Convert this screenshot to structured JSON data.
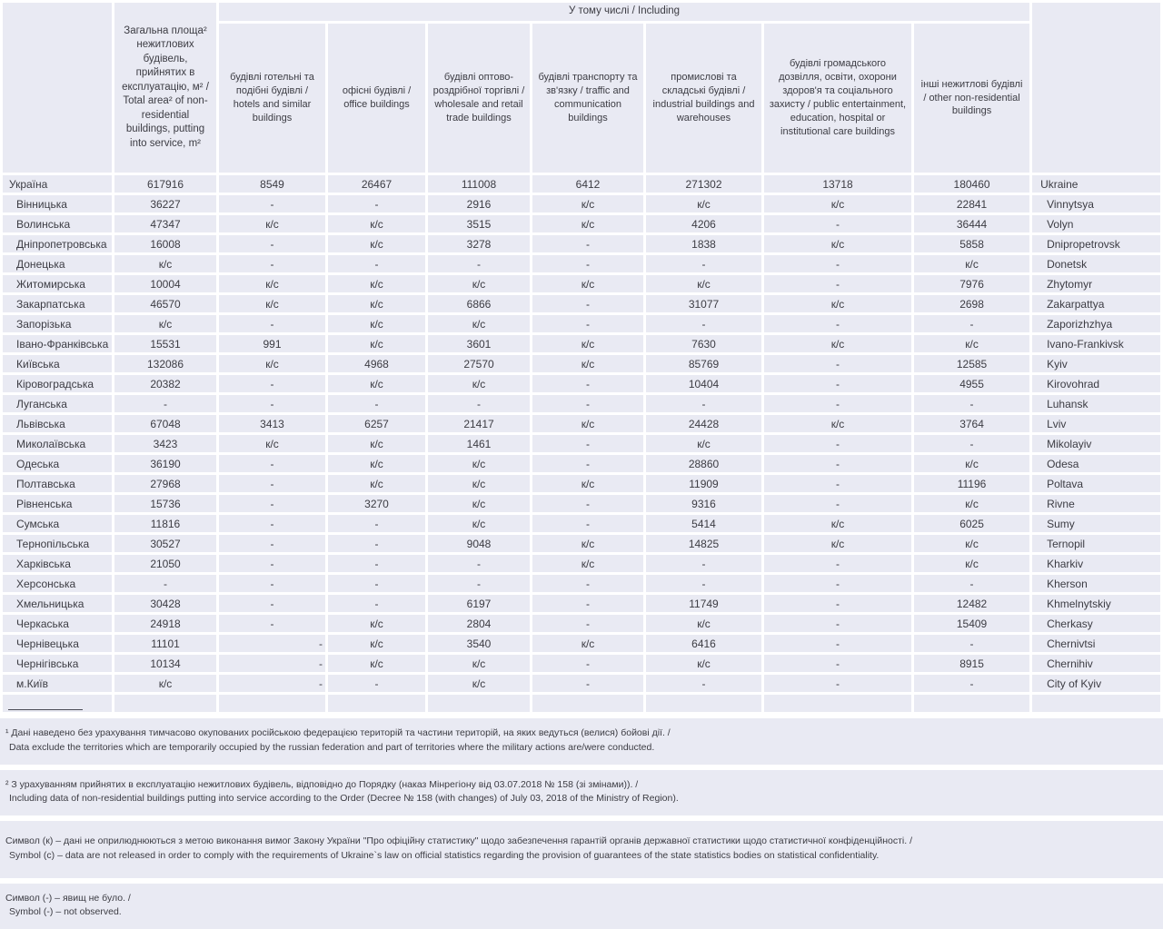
{
  "table": {
    "including_header": "У тому числі / Including",
    "col_headers": {
      "total": "Загальна площа² нежитлових будівель, прийнятих в експлуатацію, м² / Total area² of non-residential buildings, putting into service, m²",
      "hotels": "будівлі готельні та подібні будівлі / hotels and similar buildings",
      "office": "офісні будівлі / office buildings",
      "wholesale": "будівлі оптово-роздрібної торгівлі / wholesale and retail trade buildings",
      "traffic": "будівлі транспорту та зв'язку / traffic and communication buildings",
      "industrial": "промислові та складські будівлі / industrial buildings and warehouses",
      "public": "будівлі громадського дозвілля, освіти, охорони здоров'я та соціального захисту / public entertainment, education, hospital or institutional care buildings",
      "other": "інші нежитлові будівлі / other non-residential buildings"
    },
    "rows": [
      {
        "ua": "Україна",
        "en": "Ukraine",
        "indent": false,
        "values": [
          "617916",
          "8549",
          "26467",
          "111008",
          "6412",
          "271302",
          "13718",
          "180460"
        ]
      },
      {
        "ua": "Вінницька",
        "en": "Vinnytsya",
        "indent": true,
        "values": [
          "36227",
          "-",
          "-",
          "2916",
          "к/с",
          "к/с",
          "к/с",
          "22841"
        ]
      },
      {
        "ua": "Волинська",
        "en": "Volyn",
        "indent": true,
        "values": [
          "47347",
          "к/с",
          "к/с",
          "3515",
          "к/с",
          "4206",
          "-",
          "36444"
        ]
      },
      {
        "ua": "Дніпропетровська",
        "en": "Dnipropetrovsk",
        "indent": true,
        "values": [
          "16008",
          "-",
          "к/с",
          "3278",
          "-",
          "1838",
          "к/с",
          "5858"
        ]
      },
      {
        "ua": "Донецька",
        "en": "Donetsk",
        "indent": true,
        "values": [
          "к/с",
          "-",
          "-",
          "-",
          "-",
          "-",
          "-",
          "к/с"
        ]
      },
      {
        "ua": "Житомирська",
        "en": "Zhytomyr",
        "indent": true,
        "values": [
          "10004",
          "к/с",
          "к/с",
          "к/с",
          "к/с",
          "к/с",
          "-",
          "7976"
        ]
      },
      {
        "ua": "Закарпатська",
        "en": "Zakarpattya",
        "indent": true,
        "values": [
          "46570",
          "к/с",
          "к/с",
          "6866",
          "-",
          "31077",
          "к/с",
          "2698"
        ]
      },
      {
        "ua": "Запорізька",
        "en": "Zaporizhzhya",
        "indent": true,
        "values": [
          "к/с",
          "-",
          "к/с",
          "к/с",
          "-",
          "-",
          "-",
          "-"
        ]
      },
      {
        "ua": "Івано-Франківська",
        "en": "Ivano-Frankivsk",
        "indent": true,
        "values": [
          "15531",
          "991",
          "к/с",
          "3601",
          "к/с",
          "7630",
          "к/с",
          "к/с"
        ]
      },
      {
        "ua": "Київська",
        "en": "Kyiv",
        "indent": true,
        "values": [
          "132086",
          "к/с",
          "4968",
          "27570",
          "к/с",
          "85769",
          "-",
          "12585"
        ]
      },
      {
        "ua": "Кіровоградська",
        "en": "Kirovohrad",
        "indent": true,
        "values": [
          "20382",
          "-",
          "к/с",
          "к/с",
          "-",
          "10404",
          "-",
          "4955"
        ]
      },
      {
        "ua": "Луганська",
        "en": "Luhansk",
        "indent": true,
        "values": [
          "-",
          "-",
          "-",
          "-",
          "-",
          "-",
          "-",
          "-"
        ]
      },
      {
        "ua": "Львівська",
        "en": "Lviv",
        "indent": true,
        "values": [
          "67048",
          "3413",
          "6257",
          "21417",
          "к/с",
          "24428",
          "к/с",
          "3764"
        ]
      },
      {
        "ua": "Миколаївська",
        "en": "Mikolayiv",
        "indent": true,
        "values": [
          "3423",
          "к/с",
          "к/с",
          "1461",
          "-",
          "к/с",
          "-",
          "-"
        ]
      },
      {
        "ua": "Одеська",
        "en": "Odesa",
        "indent": true,
        "values": [
          "36190",
          "-",
          "к/с",
          "к/с",
          "-",
          "28860",
          "-",
          "к/с"
        ]
      },
      {
        "ua": "Полтавська",
        "en": "Poltava",
        "indent": true,
        "values": [
          "27968",
          "-",
          "к/с",
          "к/с",
          "к/с",
          "11909",
          "-",
          "11196"
        ]
      },
      {
        "ua": "Рівненська",
        "en": "Rivne",
        "indent": true,
        "values": [
          "15736",
          "-",
          "3270",
          "к/с",
          "-",
          "9316",
          "-",
          "к/с"
        ]
      },
      {
        "ua": "Сумська",
        "en": "Sumy",
        "indent": true,
        "values": [
          "11816",
          "-",
          "-",
          "к/с",
          "-",
          "5414",
          "к/с",
          "6025"
        ]
      },
      {
        "ua": "Тернопільська",
        "en": "Ternopil",
        "indent": true,
        "values": [
          "30527",
          "-",
          "-",
          "9048",
          "к/с",
          "14825",
          "к/с",
          "к/с"
        ]
      },
      {
        "ua": "Харківська",
        "en": "Kharkiv",
        "indent": true,
        "values": [
          "21050",
          "-",
          "-",
          "-",
          "к/с",
          "-",
          "-",
          "к/с"
        ]
      },
      {
        "ua": "Херсонська",
        "en": "Kherson",
        "indent": true,
        "values": [
          "-",
          "-",
          "-",
          "-",
          "-",
          "-",
          "-",
          "-"
        ]
      },
      {
        "ua": "Хмельницька",
        "en": "Khmelnytskiy",
        "indent": true,
        "values": [
          "30428",
          "-",
          "-",
          "6197",
          "-",
          "11749",
          "-",
          "12482"
        ]
      },
      {
        "ua": "Черкаська",
        "en": "Cherkasy",
        "indent": true,
        "values": [
          "24918",
          "-",
          "к/с",
          "2804",
          "-",
          "к/с",
          "-",
          "15409"
        ]
      },
      {
        "ua": "Чернівецька",
        "en": "Chernivtsi",
        "indent": true,
        "dash_right": true,
        "values": [
          "11101",
          "-",
          "к/с",
          "3540",
          "к/с",
          "6416",
          "-",
          "-"
        ]
      },
      {
        "ua": "Чернігівська",
        "en": "Chernihiv",
        "indent": true,
        "dash_right": true,
        "values": [
          "10134",
          "-",
          "к/с",
          "к/с",
          "-",
          "к/с",
          "-",
          "8915"
        ]
      },
      {
        "ua": "м.Київ",
        "en": "City of Kyiv",
        "indent": true,
        "dash_right": true,
        "values": [
          "к/с",
          "-",
          "-",
          "к/с",
          "-",
          "-",
          "-",
          "-"
        ]
      }
    ]
  },
  "footnotes": [
    {
      "ua": "¹ Дані наведено без урахування тимчасово окупованих російською федерацією територій та частини територій, на яких ведуться (велися) бойові дії. /",
      "en": "Data exclude the territories which are temporarily occupied by the russian federation and part of territories where the military actions are/were conducted."
    },
    {
      "ua": "² З урахуванням прийнятих в експлуатацію нежитлових будівель, відповідно до Порядку (наказ Мінрегіону від 03.07.2018 № 158 (зі змінами)). /",
      "en": "Including data of non-residential buildings putting into service according to the Order (Decree № 158 (with changes) of July 03, 2018 of the Ministry of Region)."
    },
    {
      "ua": "Символ (к) – дані не оприлюднюються з метою виконання вимог Закону України \"Про офіційну статистику\" щодо забезпечення гарантій органів державної статистики щодо статистичної конфіденційності. /",
      "en": "Symbol (c) – data are not released in order to comply with the requirements of Ukraine`s law on official statistics regarding the provision of guarantees of the state statistics bodies on statistical confidentiality."
    },
    {
      "ua": "Символ (-) – явищ не було. /",
      "en": "Symbol (-) – not observed."
    }
  ],
  "colors": {
    "cell_background": "#e9eaf3",
    "gridline": "#ffffff",
    "text": "#3c3c43"
  }
}
